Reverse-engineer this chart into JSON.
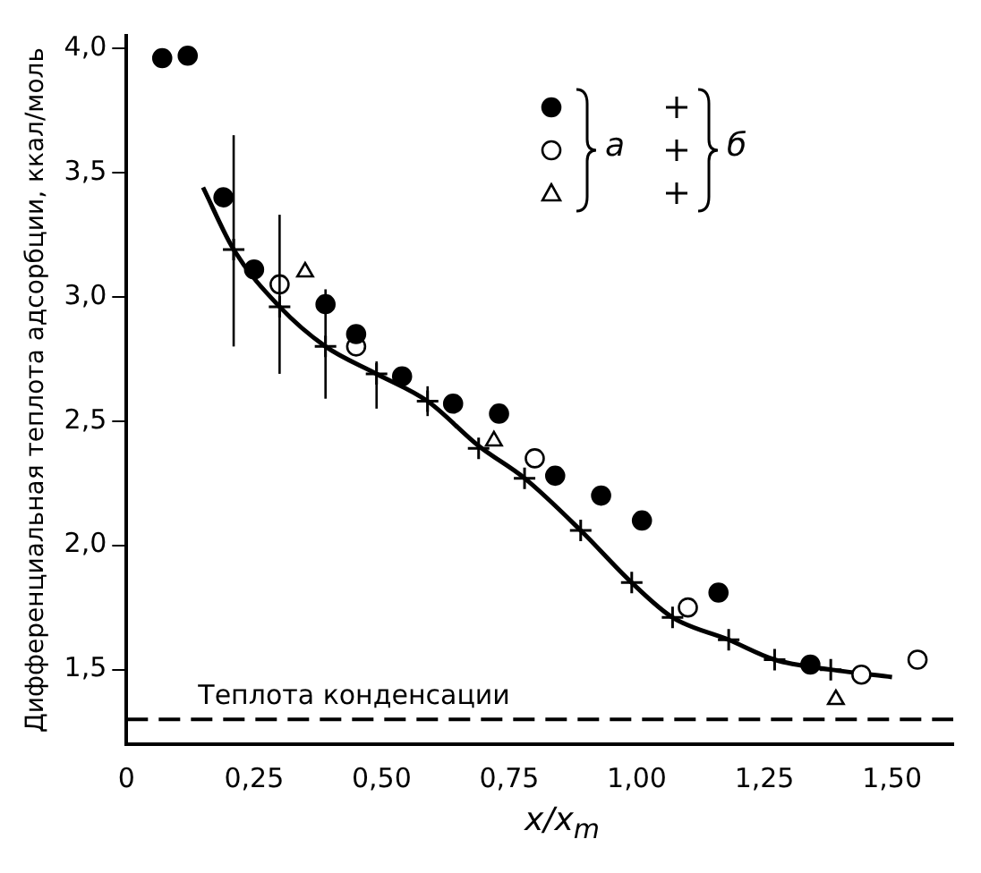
{
  "chart_data": {
    "type": "scatter",
    "xlabel": "x/x$_{m}$",
    "ylabel": "Дифференциальная теплота адсорбции, ккал/моль",
    "xlim": [
      0,
      1.62
    ],
    "ylim": [
      1.2,
      4.05
    ],
    "xticks": [
      0,
      {
        "value": 0.25,
        "label": "0,25"
      },
      {
        "value": 0.5,
        "label": "0,50"
      },
      {
        "value": 0.75,
        "label": "0,75"
      },
      {
        "value": 1.0,
        "label": "1,00"
      },
      {
        "value": 1.25,
        "label": "1,25"
      },
      {
        "value": 1.5,
        "label": "1,50"
      }
    ],
    "yticks": [
      {
        "value": 1.5,
        "label": "1,5"
      },
      {
        "value": 2.0,
        "label": "2,0"
      },
      {
        "value": 2.5,
        "label": "2,5"
      },
      {
        "value": 3.0,
        "label": "3,0"
      },
      {
        "value": 3.5,
        "label": "3,5"
      },
      {
        "value": 4.0,
        "label": "4,0"
      }
    ],
    "grid": false,
    "legend": "top right",
    "ref_lines": [
      {
        "axis": "y",
        "value": 1.3,
        "label": "Теплота конденсации",
        "color": "#000000",
        "line_style": "dashed"
      }
    ],
    "series": [
      {
        "marker": "circle",
        "color": "#000000",
        "x": [
          0.07,
          0.12,
          0.19,
          0.25,
          0.39,
          0.45,
          0.54,
          0.64,
          0.73,
          0.84,
          0.93,
          1.01,
          1.16,
          1.34
        ],
        "values": [
          3.96,
          3.97,
          3.4,
          3.11,
          2.97,
          2.85,
          2.68,
          2.57,
          2.53,
          2.28,
          2.2,
          2.1,
          1.81,
          1.52
        ]
      },
      {
        "name": "а",
        "marker": "circle",
        "color": "#ffffff",
        "x": [
          0.3,
          0.45,
          0.8,
          1.1,
          1.44,
          1.55
        ],
        "values": [
          3.05,
          2.8,
          2.35,
          1.75,
          1.48,
          1.54
        ]
      },
      {
        "marker": "triangle",
        "color": "#ffffff",
        "x": [
          0.35,
          0.72,
          1.39
        ],
        "values": [
          3.1,
          2.42,
          1.38
        ]
      },
      {
        "type": "line",
        "marker": "none",
        "line_style": "solid",
        "color": "#000000",
        "x": [
          0.15,
          0.21,
          0.3,
          0.39,
          0.49,
          0.59,
          0.69,
          0.78,
          0.89,
          0.99,
          1.07,
          1.18,
          1.27,
          1.38,
          1.5
        ],
        "values": [
          3.44,
          3.19,
          2.96,
          2.8,
          2.69,
          2.58,
          2.4,
          2.27,
          2.06,
          1.85,
          1.71,
          1.62,
          1.54,
          1.5,
          1.47
        ]
      },
      {
        "name": "б",
        "marker": "cross",
        "color": "#000000",
        "x": [
          0.21,
          0.3,
          0.39,
          0.49,
          0.59,
          0.69,
          0.78,
          0.89,
          0.99,
          1.07,
          1.18,
          1.27,
          1.38
        ],
        "values": [
          3.19,
          2.96,
          2.8,
          2.69,
          2.58,
          2.39,
          2.27,
          2.06,
          1.85,
          1.71,
          1.62,
          1.54,
          1.5
        ],
        "errors": [
          [
            2.8,
            3.65
          ],
          [
            2.69,
            3.33
          ],
          [
            2.59,
            3.03
          ],
          [
            2.55,
            2.74
          ],
          [
            2.52,
            2.64
          ],
          null,
          null,
          null,
          null,
          null,
          null,
          null,
          null
        ]
      }
    ]
  }
}
